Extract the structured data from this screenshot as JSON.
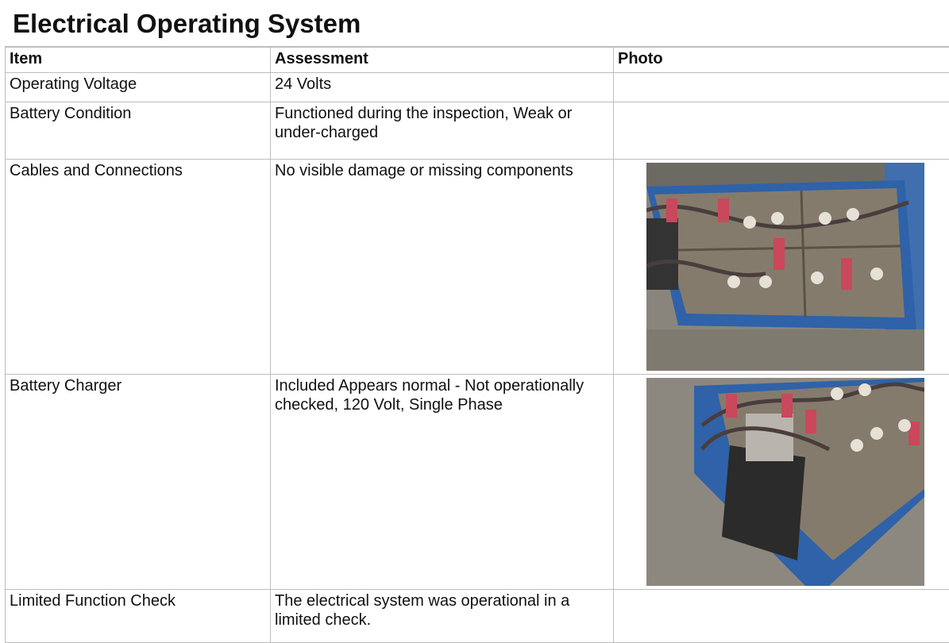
{
  "header": {
    "title": "Electrical Operating System"
  },
  "table": {
    "columns": [
      "Item",
      "Assessment",
      "Photo"
    ],
    "rows": [
      [
        "Operating Voltage",
        "24 Volts"
      ],
      [
        "Battery Condition",
        "Functioned during the inspection, Weak or under-charged"
      ],
      [
        "Cables and Connections",
        "No visible damage or missing components"
      ],
      [
        "Battery Charger",
        "Included Appears normal - Not operationally checked, 120 Volt, Single Phase"
      ],
      [
        "Limited Function Check",
        "The electrical system was operational in a limited check."
      ]
    ]
  }
}
